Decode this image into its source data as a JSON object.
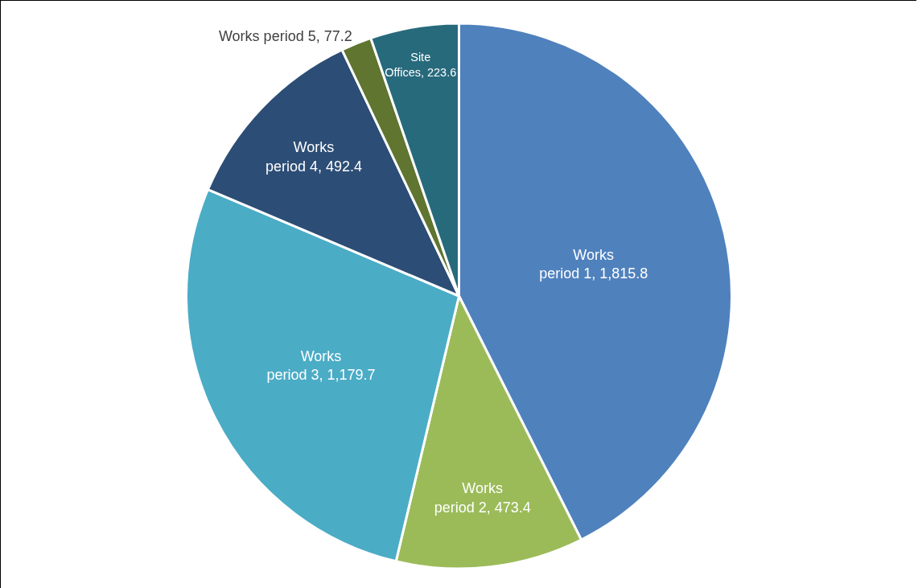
{
  "chart_data": {
    "type": "pie",
    "categories": [
      "Works period 1",
      "Works period 2",
      "Works period 3",
      "Works period 4",
      "Works period 5",
      "Site Offices"
    ],
    "values": [
      1815.8,
      473.4,
      1179.7,
      492.4,
      77.2,
      223.6
    ],
    "value_labels": [
      "1,815.8",
      "473.4",
      "1,179.7",
      "492.4",
      "77.2",
      "223.6"
    ],
    "colors": [
      "#4f81bd",
      "#9bbb59",
      "#4bacc6",
      "#2c4d75",
      "#5f7530",
      "#276a7c"
    ]
  }
}
